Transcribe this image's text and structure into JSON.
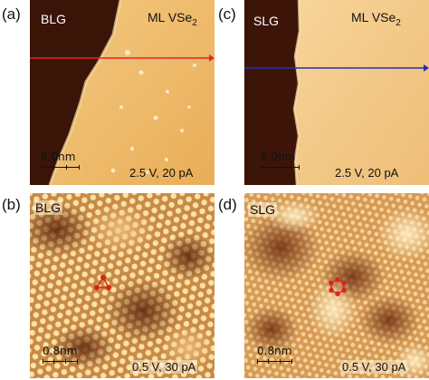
{
  "figure": {
    "panels": [
      {
        "letter": "(a)",
        "left_label": "BLG",
        "right_label_main": "ML VSe",
        "right_label_sub": "2",
        "scale_bar": "6.0nm",
        "params": "2.5 V, 20 pA",
        "line_color": "#e8222a"
      },
      {
        "letter": "(c)",
        "left_label": "SLG",
        "right_label_main": "ML VSe",
        "right_label_sub": "2",
        "scale_bar": "6.0nm",
        "params": "2.5 V, 20 pA",
        "line_color": "#2a2fb0"
      },
      {
        "letter": "(b)",
        "left_label": "BLG",
        "scale_bar": "0.8nm",
        "params": "0.5 V, 30 pA",
        "marker": "triangle",
        "marker_color": "#d8241e"
      },
      {
        "letter": "(d)",
        "left_label": "SLG",
        "scale_bar": "0.8nm",
        "params": "0.5 V, 30 pA",
        "marker": "hexagon",
        "marker_color": "#d8241e"
      }
    ]
  }
}
